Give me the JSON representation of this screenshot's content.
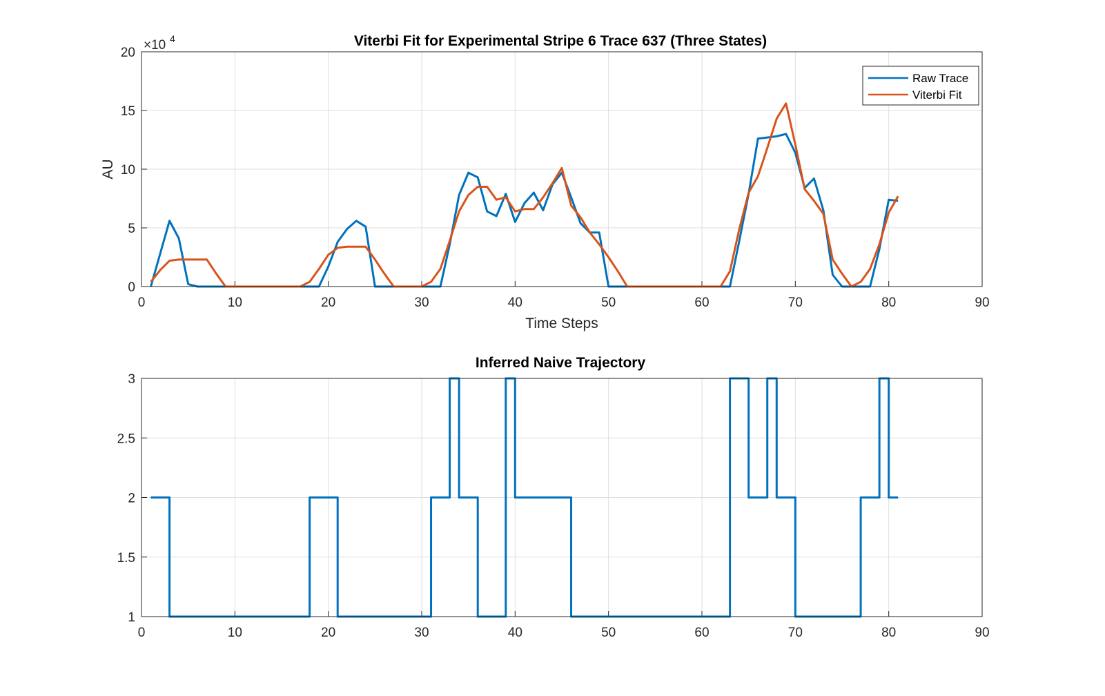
{
  "chart_data": [
    {
      "type": "line",
      "title": "Viterbi Fit for Experimental Stripe 6 Trace 637 (Three States)",
      "xlabel": "Time Steps",
      "ylabel": "AU",
      "exponent_base": "×10",
      "exponent_power": "4",
      "xlim": [
        0,
        90
      ],
      "ylim": [
        0,
        20
      ],
      "xticks": [
        "0",
        "10",
        "20",
        "30",
        "40",
        "50",
        "60",
        "70",
        "80",
        "90"
      ],
      "yticks": [
        "0",
        "5",
        "10",
        "15",
        "20"
      ],
      "grid": true,
      "legend_position": "top-right",
      "x": [
        1,
        2,
        3,
        4,
        5,
        6,
        7,
        8,
        9,
        10,
        11,
        12,
        13,
        14,
        15,
        16,
        17,
        18,
        19,
        20,
        21,
        22,
        23,
        24,
        25,
        26,
        27,
        28,
        29,
        30,
        31,
        32,
        33,
        34,
        35,
        36,
        37,
        38,
        39,
        40,
        41,
        42,
        43,
        44,
        45,
        46,
        47,
        48,
        49,
        50,
        51,
        52,
        53,
        54,
        55,
        56,
        57,
        58,
        59,
        60,
        61,
        62,
        63,
        64,
        65,
        66,
        67,
        68,
        69,
        70,
        71,
        72,
        73,
        74,
        75,
        76,
        77,
        78,
        79,
        80,
        81
      ],
      "series": [
        {
          "name": "Raw Trace",
          "color": "#0072bd",
          "values": [
            0,
            2.8,
            5.6,
            4.1,
            0.2,
            0,
            0,
            0,
            0,
            0,
            0,
            0,
            0,
            0,
            0,
            0,
            0,
            0,
            0,
            1.7,
            3.8,
            4.9,
            5.6,
            5.1,
            0,
            0,
            0,
            0,
            0,
            0,
            0,
            0,
            3.6,
            7.8,
            9.7,
            9.3,
            6.4,
            6.0,
            7.9,
            5.5,
            7.1,
            8.0,
            6.5,
            8.7,
            9.7,
            7.6,
            5.4,
            4.6,
            4.6,
            0,
            0,
            0,
            0,
            0,
            0,
            0,
            0,
            0,
            0,
            0,
            0,
            0,
            0,
            3.9,
            7.9,
            12.6,
            12.7,
            12.8,
            13.0,
            11.4,
            8.4,
            9.2,
            6.5,
            1.0,
            0,
            0,
            0,
            0,
            3.2,
            7.4,
            7.3
          ]
        },
        {
          "name": "Viterbi Fit",
          "color": "#d95319",
          "values": [
            0.4,
            1.4,
            2.2,
            2.3,
            2.3,
            2.3,
            2.3,
            1.1,
            0,
            0,
            0,
            0,
            0,
            0,
            0,
            0,
            0,
            0.4,
            1.5,
            2.7,
            3.3,
            3.4,
            3.4,
            3.4,
            2.3,
            1.1,
            0,
            0,
            0,
            0,
            0.4,
            1.5,
            3.9,
            6.4,
            7.8,
            8.5,
            8.5,
            7.4,
            7.6,
            6.4,
            6.6,
            6.6,
            7.6,
            8.8,
            10.1,
            6.9,
            5.9,
            4.6,
            3.6,
            2.5,
            1.3,
            0,
            0,
            0,
            0,
            0,
            0,
            0,
            0,
            0,
            0,
            0,
            1.3,
            4.9,
            8.0,
            9.4,
            11.8,
            14.3,
            15.6,
            12.1,
            8.3,
            7.3,
            6.2,
            2.3,
            1.1,
            0,
            0.4,
            1.5,
            3.6,
            6.3,
            7.7
          ]
        }
      ]
    },
    {
      "type": "line",
      "title": "Inferred Naive Trajectory",
      "xlim": [
        0,
        90
      ],
      "ylim": [
        1,
        3
      ],
      "xticks": [
        "0",
        "10",
        "20",
        "30",
        "40",
        "50",
        "60",
        "70",
        "80",
        "90"
      ],
      "yticks": [
        "1",
        "1.5",
        "2",
        "2.5",
        "3"
      ],
      "grid": true,
      "step": true,
      "x": [
        1,
        2,
        3,
        4,
        5,
        6,
        7,
        8,
        9,
        10,
        11,
        12,
        13,
        14,
        15,
        16,
        17,
        18,
        19,
        20,
        21,
        22,
        23,
        24,
        25,
        26,
        27,
        28,
        29,
        30,
        31,
        32,
        33,
        34,
        35,
        36,
        37,
        38,
        39,
        40,
        41,
        42,
        43,
        44,
        45,
        46,
        47,
        48,
        49,
        50,
        51,
        52,
        53,
        54,
        55,
        56,
        57,
        58,
        59,
        60,
        61,
        62,
        63,
        64,
        65,
        66,
        67,
        68,
        69,
        70,
        71,
        72,
        73,
        74,
        75,
        76,
        77,
        78,
        79,
        80,
        81
      ],
      "series": [
        {
          "color": "#0072bd",
          "values": [
            2,
            2,
            1,
            1,
            1,
            1,
            1,
            1,
            1,
            1,
            1,
            1,
            1,
            1,
            1,
            1,
            1,
            2,
            2,
            2,
            1,
            1,
            1,
            1,
            1,
            1,
            1,
            1,
            1,
            1,
            2,
            2,
            3,
            2,
            2,
            1,
            1,
            1,
            3,
            2,
            2,
            2,
            2,
            2,
            2,
            1,
            1,
            1,
            1,
            1,
            1,
            1,
            1,
            1,
            1,
            1,
            1,
            1,
            1,
            1,
            1,
            1,
            3,
            3,
            2,
            2,
            3,
            2,
            2,
            1,
            1,
            1,
            1,
            1,
            1,
            1,
            2,
            2,
            3,
            2,
            2
          ]
        }
      ]
    }
  ]
}
